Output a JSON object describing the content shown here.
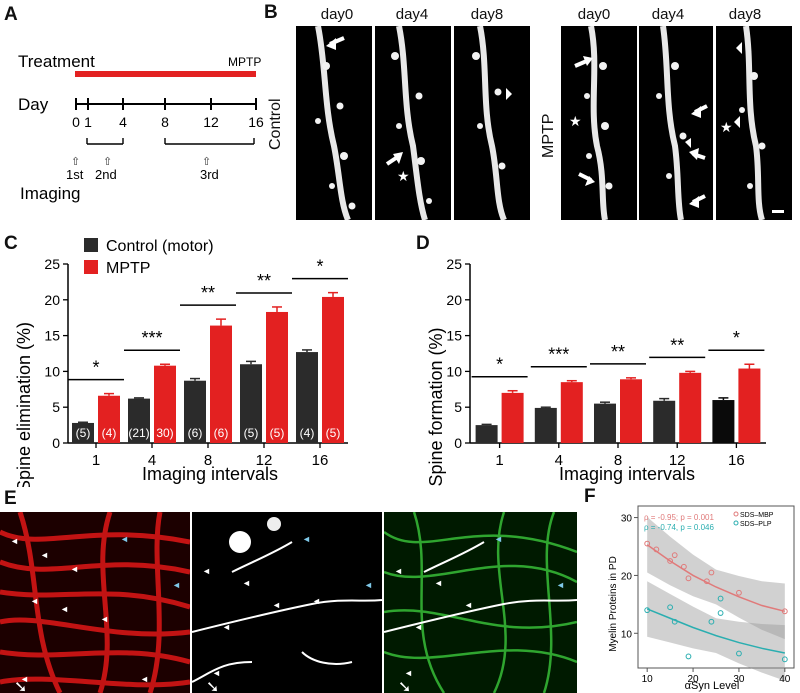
{
  "panel_labels": [
    "A",
    "B",
    "C",
    "D",
    "E",
    "F"
  ],
  "panelA": {
    "treatment_label": "Treatment",
    "mptp_label": "MPTP",
    "day_label": "Day",
    "ticks": [
      "0",
      "1",
      "4",
      "8",
      "12",
      "16"
    ],
    "imaging_label": "Imaging",
    "sessions": [
      "1st",
      "2nd",
      "3rd"
    ],
    "colors": {
      "treatment_bar": "#e32121"
    }
  },
  "panelB": {
    "days": [
      "day0",
      "day4",
      "day8"
    ],
    "control_label": "Control",
    "mptp_label": "MPTP"
  },
  "chart_data": [
    {
      "panel": "C",
      "type": "bar",
      "ylabel": "Spine elimination (%)",
      "xlabel": "Imaging intervals",
      "categories": [
        "1",
        "4",
        "8",
        "12",
        "16"
      ],
      "ylim": [
        0,
        25
      ],
      "yticks": [
        "0",
        "5",
        "10",
        "15",
        "20",
        "25"
      ],
      "legend_position": "top-left",
      "series": [
        {
          "name": "Control (motor)",
          "color": "#2b2b2b",
          "values": [
            2.8,
            6.2,
            8.7,
            11.0,
            12.7
          ],
          "errors": [
            0.1,
            0.1,
            0.3,
            0.4,
            0.3
          ],
          "n": [
            "(5)",
            "(21)",
            "(6)",
            "(5)",
            "(4)"
          ]
        },
        {
          "name": "MPTP",
          "color": "#e32121",
          "values": [
            6.6,
            10.8,
            16.4,
            18.3,
            20.4
          ],
          "errors": [
            0.3,
            0.2,
            0.9,
            0.7,
            0.6
          ],
          "n": [
            "(4)",
            "30)",
            "(6)",
            "(5)",
            "(5)"
          ]
        }
      ],
      "significance": [
        "*",
        "***",
        "**",
        "**",
        "*"
      ]
    },
    {
      "panel": "D",
      "type": "bar",
      "ylabel": "Spine formation (%)",
      "xlabel": "Imaging intervals",
      "categories": [
        "1",
        "4",
        "8",
        "12",
        "16"
      ],
      "ylim": [
        0,
        25
      ],
      "yticks": [
        "0",
        "5",
        "10",
        "15",
        "20",
        "25"
      ],
      "series": [
        {
          "name": "Control (motor)",
          "color": "#2b2b2b",
          "values": [
            2.5,
            4.9,
            5.5,
            5.9,
            6.0
          ],
          "errors": [
            0.1,
            0.1,
            0.2,
            0.3,
            0.3
          ],
          "n": []
        },
        {
          "name": "MPTP",
          "color": "#e32121",
          "values": [
            7.0,
            8.5,
            8.9,
            9.8,
            10.4
          ],
          "errors": [
            0.3,
            0.2,
            0.2,
            0.2,
            0.6
          ],
          "n": []
        }
      ],
      "significance": [
        "*",
        "***",
        "**",
        "**",
        "*"
      ]
    },
    {
      "panel": "F",
      "type": "scatter",
      "xlabel": "αSyn Level",
      "ylabel": "Myelin Proteins in PD",
      "xlim": [
        8,
        42
      ],
      "ylim": [
        4,
        32
      ],
      "xticks": [
        "10",
        "20",
        "30",
        "40"
      ],
      "yticks": [
        "10",
        "20",
        "30"
      ],
      "legend_position": "top-right",
      "series": [
        {
          "name": "SDS–MBP",
          "color": "#e07a7a",
          "stat": "ρ = -0.95; p = 0.001",
          "points": [
            [
              10,
              25.5
            ],
            [
              12,
              24.5
            ],
            [
              15,
              22.5
            ],
            [
              16,
              23.5
            ],
            [
              18,
              21.5
            ],
            [
              19,
              19.5
            ],
            [
              23,
              19
            ],
            [
              24,
              20.5
            ],
            [
              30,
              17
            ],
            [
              40,
              13.8
            ]
          ],
          "fit": [
            [
              10,
              25.3
            ],
            [
              15,
              22.5
            ],
            [
              20,
              20.0
            ],
            [
              25,
              18.0
            ],
            [
              30,
              16.3
            ],
            [
              35,
              14.8
            ],
            [
              40,
              13.8
            ]
          ]
        },
        {
          "name": "SDS–PLP",
          "color": "#2aaeb0",
          "stat": "ρ = -0.74, p = 0.046",
          "points": [
            [
              10,
              14
            ],
            [
              15,
              14.5
            ],
            [
              16,
              12
            ],
            [
              19,
              6
            ],
            [
              24,
              12
            ],
            [
              26,
              16
            ],
            [
              26,
              13.5
            ],
            [
              30,
              6.5
            ],
            [
              40,
              5.5
            ]
          ],
          "fit": [
            [
              10,
              14.2
            ],
            [
              15,
              12.6
            ],
            [
              20,
              11.0
            ],
            [
              25,
              9.6
            ],
            [
              30,
              8.4
            ],
            [
              35,
              7.4
            ],
            [
              40,
              6.6
            ]
          ]
        }
      ]
    }
  ]
}
